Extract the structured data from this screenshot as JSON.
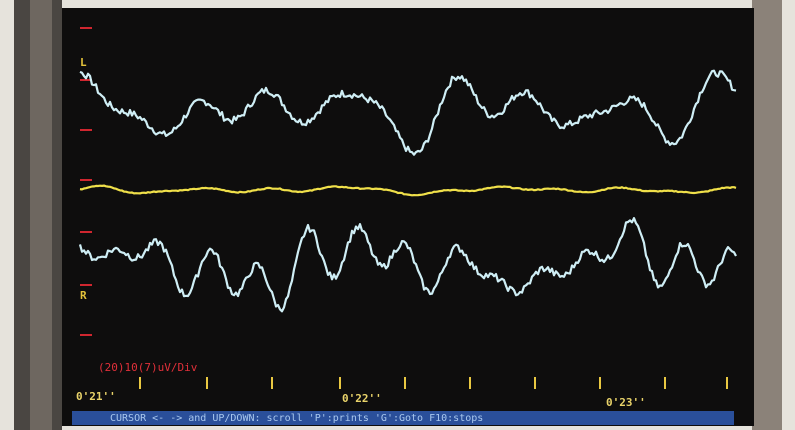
{
  "screen": {
    "channel_labels": [
      "L",
      "R"
    ],
    "scale": "(20)10(7)uV/Div",
    "time_labels": [
      "0'21''",
      "0'22''",
      "0'23''"
    ],
    "status_bar": "CURSOR <- -> and UP/DOWN: scroll 'P':prints  'G':Goto  F10:stops"
  }
}
